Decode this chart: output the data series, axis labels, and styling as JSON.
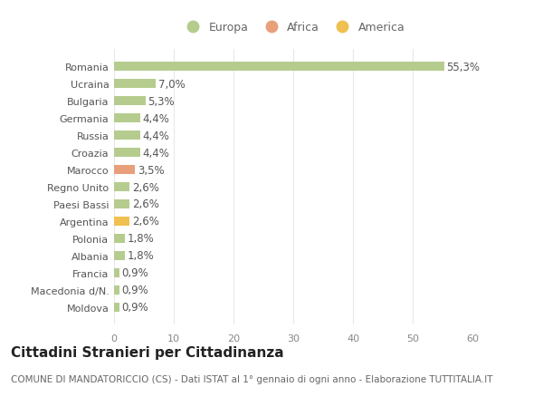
{
  "categories": [
    "Moldova",
    "Macedonia d/N.",
    "Francia",
    "Albania",
    "Polonia",
    "Argentina",
    "Paesi Bassi",
    "Regno Unito",
    "Marocco",
    "Croazia",
    "Russia",
    "Germania",
    "Bulgaria",
    "Ucraina",
    "Romania"
  ],
  "values": [
    0.9,
    0.9,
    0.9,
    1.8,
    1.8,
    2.6,
    2.6,
    2.6,
    3.5,
    4.4,
    4.4,
    4.4,
    5.3,
    7.0,
    55.3
  ],
  "labels": [
    "0,9%",
    "0,9%",
    "0,9%",
    "1,8%",
    "1,8%",
    "2,6%",
    "2,6%",
    "2,6%",
    "3,5%",
    "4,4%",
    "4,4%",
    "4,4%",
    "5,3%",
    "7,0%",
    "55,3%"
  ],
  "colors": [
    "#b5cc8e",
    "#b5cc8e",
    "#b5cc8e",
    "#b5cc8e",
    "#b5cc8e",
    "#f0c050",
    "#b5cc8e",
    "#b5cc8e",
    "#e8a07a",
    "#b5cc8e",
    "#b5cc8e",
    "#b5cc8e",
    "#b5cc8e",
    "#b5cc8e",
    "#b5cc8e"
  ],
  "legend_labels": [
    "Europa",
    "Africa",
    "America"
  ],
  "legend_colors": [
    "#b5cc8e",
    "#e8a07a",
    "#f0c050"
  ],
  "title": "Cittadini Stranieri per Cittadinanza",
  "subtitle": "COMUNE DI MANDATORICCIO (CS) - Dati ISTAT al 1° gennaio di ogni anno - Elaborazione TUTTITALIA.IT",
  "xlim": [
    0,
    60
  ],
  "xticks": [
    0,
    10,
    20,
    30,
    40,
    50,
    60
  ],
  "background_color": "#ffffff",
  "grid_color": "#e8e8e8",
  "title_fontsize": 11,
  "subtitle_fontsize": 7.5,
  "tick_fontsize": 8,
  "label_fontsize": 8.5
}
